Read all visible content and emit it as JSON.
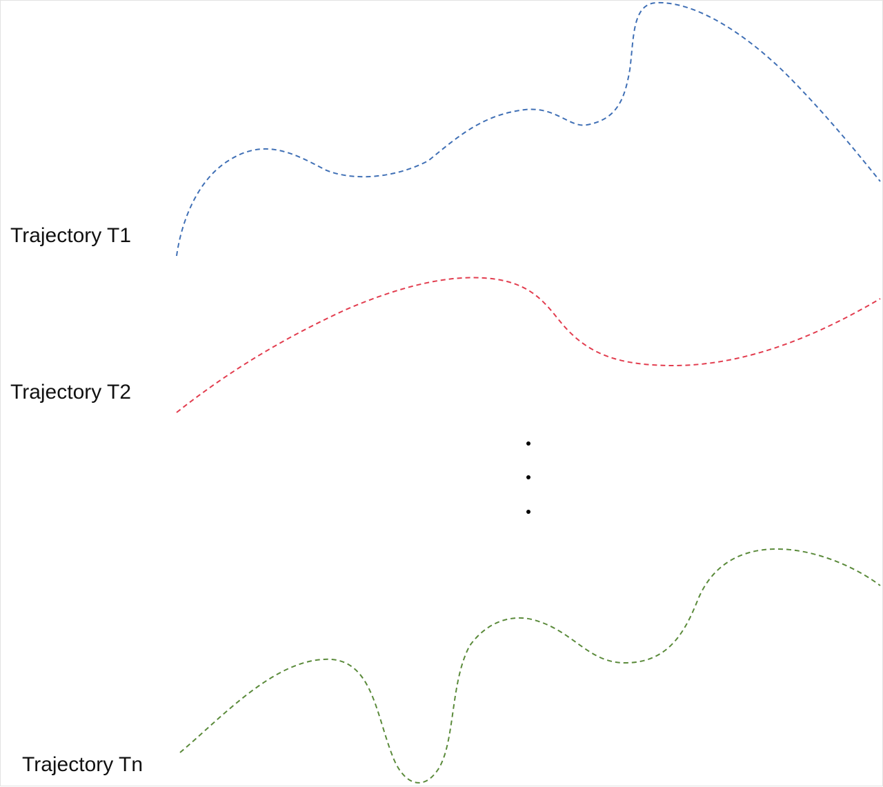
{
  "trajectories": [
    {
      "id": "t1",
      "label": "Trajectory T1",
      "color": "#3f6fb5"
    },
    {
      "id": "t2",
      "label": "Trajectory T2",
      "color": "#e23c4e"
    },
    {
      "id": "tn",
      "label": "Trajectory Tn",
      "color": "#5a8a3a"
    }
  ],
  "ellipsis": {
    "dot_color": "#000000",
    "dot_count": 3
  }
}
